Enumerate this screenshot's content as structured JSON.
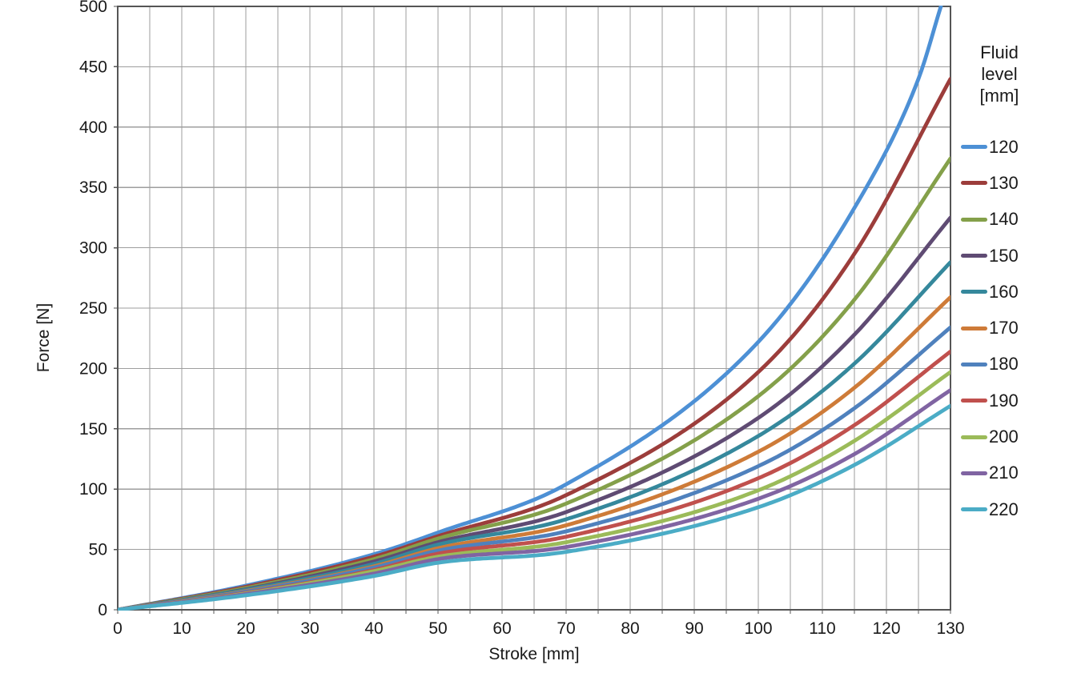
{
  "chart_data": {
    "type": "line",
    "xlabel": "Stroke [mm]",
    "ylabel": "Force [N]",
    "xlim": [
      0,
      130
    ],
    "ylim": [
      0,
      500
    ],
    "xticks": [
      0,
      10,
      20,
      30,
      40,
      50,
      60,
      70,
      80,
      90,
      100,
      110,
      120,
      130
    ],
    "yticks": [
      0,
      50,
      100,
      150,
      200,
      250,
      300,
      350,
      400,
      450,
      500
    ],
    "x_minor_step": 5,
    "grid": true,
    "legend_position": "right",
    "legend_title_lines": [
      "Fluid",
      "level",
      "[mm]"
    ],
    "series": [
      {
        "name": "120",
        "color": "#4D90D5",
        "x": [
          0,
          20,
          40,
          50,
          70,
          100,
          115,
          125,
          128.5
        ],
        "y": [
          0,
          20,
          46,
          64,
          104,
          222,
          333,
          440,
          500
        ]
      },
      {
        "name": "130",
        "color": "#9C3D3B",
        "x": [
          0,
          20,
          40,
          50,
          70,
          100,
          115,
          130
        ],
        "y": [
          0,
          19,
          44,
          61,
          95,
          197,
          295,
          440
        ]
      },
      {
        "name": "140",
        "color": "#84A04A",
        "x": [
          0,
          20,
          40,
          50,
          70,
          100,
          115,
          130
        ],
        "y": [
          0,
          18,
          42,
          59,
          88,
          177,
          257,
          374
        ]
      },
      {
        "name": "150",
        "color": "#5F4B73",
        "x": [
          0,
          20,
          40,
          50,
          70,
          100,
          115,
          130
        ],
        "y": [
          0,
          17,
          40,
          56,
          81,
          159,
          228,
          325
        ]
      },
      {
        "name": "160",
        "color": "#35889C",
        "x": [
          0,
          20,
          40,
          50,
          70,
          100,
          115,
          130
        ],
        "y": [
          0,
          16.5,
          38,
          54,
          75,
          144,
          204,
          288
        ]
      },
      {
        "name": "170",
        "color": "#CE7B38",
        "x": [
          0,
          20,
          40,
          50,
          70,
          100,
          115,
          130
        ],
        "y": [
          0,
          15.5,
          36,
          51,
          70,
          131,
          184,
          259
        ]
      },
      {
        "name": "180",
        "color": "#4F81BD",
        "x": [
          0,
          20,
          40,
          50,
          70,
          100,
          115,
          130
        ],
        "y": [
          0,
          15,
          35,
          49,
          65,
          119,
          167,
          234
        ]
      },
      {
        "name": "190",
        "color": "#C0504D",
        "x": [
          0,
          20,
          40,
          50,
          70,
          100,
          115,
          130
        ],
        "y": [
          0,
          14,
          33,
          46.5,
          60.5,
          109,
          153,
          214
        ]
      },
      {
        "name": "200",
        "color": "#9BBB59",
        "x": [
          0,
          20,
          40,
          50,
          70,
          100,
          115,
          130
        ],
        "y": [
          0,
          13.5,
          32,
          44,
          56,
          99,
          140,
          197
        ]
      },
      {
        "name": "210",
        "color": "#8064A2",
        "x": [
          0,
          20,
          40,
          50,
          70,
          100,
          115,
          130
        ],
        "y": [
          0,
          13,
          30,
          42,
          52,
          92,
          129,
          182
        ]
      },
      {
        "name": "220",
        "color": "#4BACC6",
        "x": [
          0,
          20,
          40,
          50,
          70,
          100,
          115,
          130
        ],
        "y": [
          0,
          12,
          28,
          39,
          48,
          85,
          120,
          169
        ]
      }
    ]
  },
  "style": {
    "grid_color": "#9e9e9e",
    "axis_color": "#555555",
    "background": "#ffffff",
    "text_color": "#1a1a1a"
  }
}
